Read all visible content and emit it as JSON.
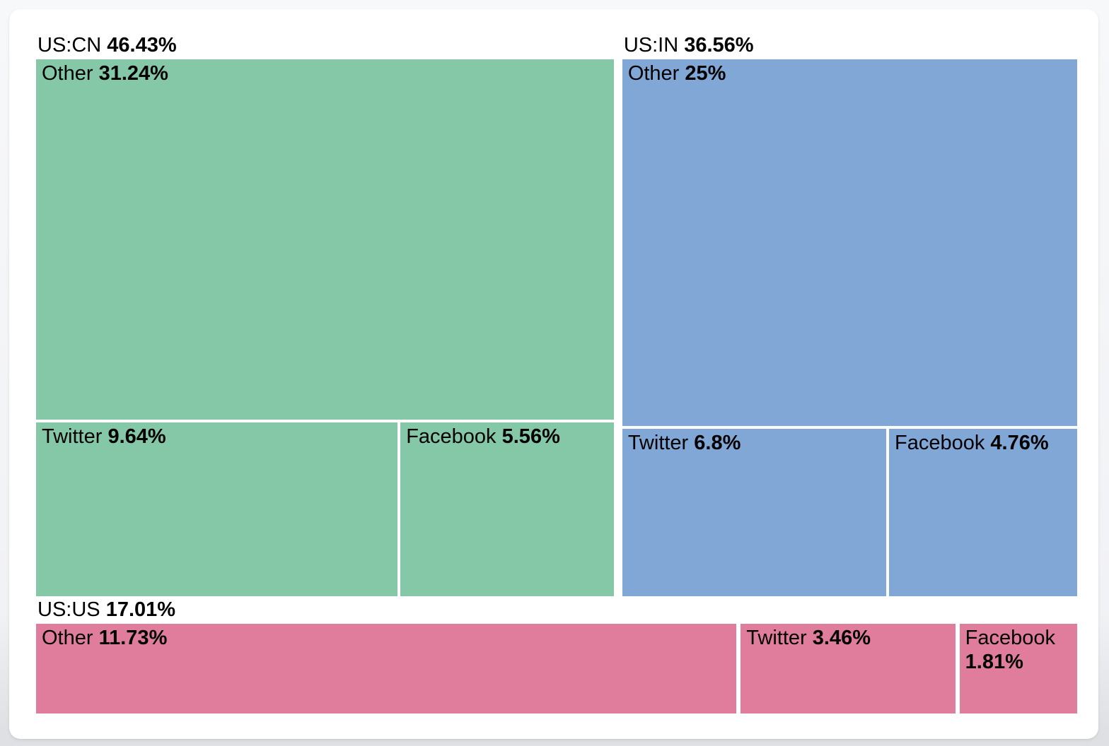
{
  "page": {
    "card_color": "#ffffff",
    "background_color": "#f1f2f5",
    "text_color": "#000000"
  },
  "chart_data": {
    "type": "treemap",
    "title": "",
    "unit": "%",
    "legend": "none",
    "grid": "off",
    "layout_hint": "two groups side-by-side on top row, third group full-width bottom row; labels top-left; white gaps between tiles",
    "groups": [
      {
        "name": "US:CN",
        "value_label": "46.43%",
        "value": 46.43,
        "color": "#84C8A8",
        "children": [
          {
            "name": "Other",
            "value_label": "31.24%",
            "value": 31.24
          },
          {
            "name": "Twitter",
            "value_label": "9.64%",
            "value": 9.64
          },
          {
            "name": "Facebook",
            "value_label": "5.56%",
            "value": 5.56
          }
        ]
      },
      {
        "name": "US:IN",
        "value_label": "36.56%",
        "value": 36.56,
        "color": "#80A7D6",
        "children": [
          {
            "name": "Other",
            "value_label": "25%",
            "value": 25
          },
          {
            "name": "Twitter",
            "value_label": "6.8%",
            "value": 6.8
          },
          {
            "name": "Facebook",
            "value_label": "4.76%",
            "value": 4.76
          }
        ]
      },
      {
        "name": "US:US",
        "value_label": "17.01%",
        "value": 17.01,
        "color": "#E07D9D",
        "children": [
          {
            "name": "Other",
            "value_label": "11.73%",
            "value": 11.73
          },
          {
            "name": "Twitter",
            "value_label": "3.46%",
            "value": 3.46
          },
          {
            "name": "Facebook",
            "value_label": "1.81%",
            "value": 1.81
          }
        ]
      }
    ]
  }
}
